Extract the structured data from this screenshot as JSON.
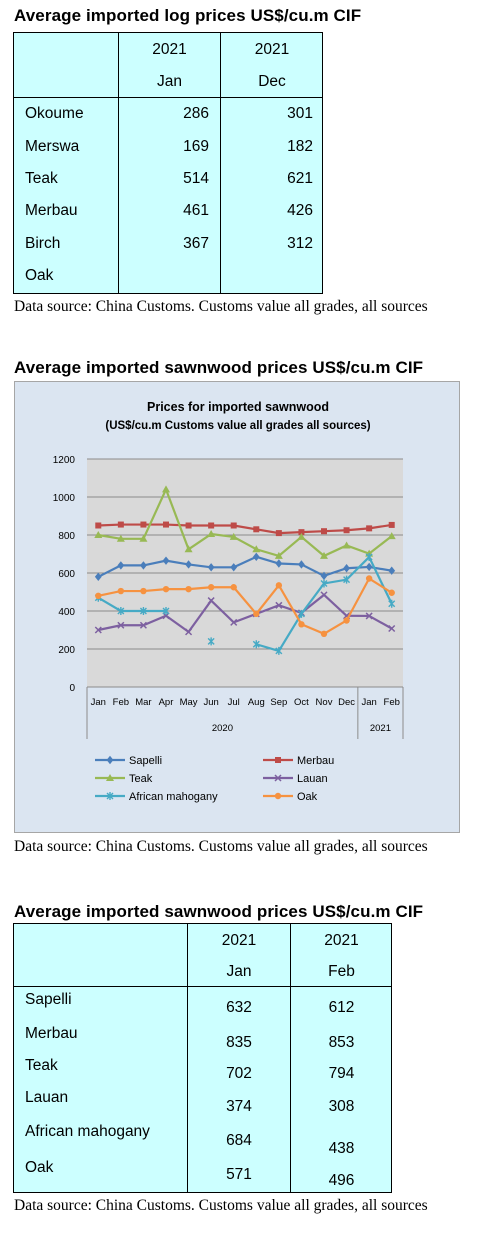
{
  "log_table": {
    "heading": "Average imported log prices US$/cu.m CIF",
    "col1_year": "2021",
    "col1_month": "Jan",
    "col2_year": "2021",
    "col2_month": "Dec",
    "rows": [
      {
        "name": "Okoume",
        "jan": "286",
        "dec": "301"
      },
      {
        "name": "Merswa",
        "jan": "169",
        "dec": "182"
      },
      {
        "name": "Teak",
        "jan": "514",
        "dec": "621"
      },
      {
        "name": "Merbau",
        "jan": "461",
        "dec": "426"
      },
      {
        "name": "Birch",
        "jan": "367",
        "dec": "312"
      },
      {
        "name": "Oak",
        "jan": "",
        "dec": ""
      }
    ],
    "source": "Data source: China Customs. Customs value all grades, all sources"
  },
  "chart_section": {
    "heading": "Average imported sawnwood prices US$/cu.m CIF",
    "source": "Data source: China Customs. Customs value all grades, all sources"
  },
  "chart_data": {
    "type": "line",
    "title": "Prices for imported sawnwood",
    "subtitle": "(US$/cu.m Customs value all grades all sources)",
    "categories": [
      "Jan",
      "Feb",
      "Mar",
      "Apr",
      "May",
      "Jun",
      "Jul",
      "Aug",
      "Sep",
      "Oct",
      "Nov",
      "Dec",
      "Jan",
      "Feb"
    ],
    "year_groups": [
      {
        "label": "2020",
        "start": 0,
        "end": 11
      },
      {
        "label": "2021",
        "start": 12,
        "end": 13
      }
    ],
    "ylim": [
      0,
      1200
    ],
    "yticks": [
      "0",
      "200",
      "400",
      "600",
      "800",
      "1000",
      "1200"
    ],
    "grid": true,
    "legend_position": "bottom",
    "series": [
      {
        "name": "Sapelli",
        "color": "#4a7ebb",
        "marker": "diamond",
        "values": [
          580,
          640,
          640,
          665,
          645,
          630,
          630,
          685,
          650,
          645,
          585,
          625,
          632,
          612
        ]
      },
      {
        "name": "Merbau",
        "color": "#be4b48",
        "marker": "square",
        "values": [
          850,
          855,
          855,
          855,
          850,
          850,
          850,
          830,
          810,
          815,
          820,
          825,
          835,
          853
        ]
      },
      {
        "name": "Teak",
        "color": "#98b954",
        "marker": "triangle",
        "values": [
          800,
          780,
          780,
          1040,
          725,
          805,
          790,
          725,
          690,
          790,
          690,
          745,
          702,
          794
        ]
      },
      {
        "name": "Lauan",
        "color": "#7d60a0",
        "marker": "x",
        "values": [
          300,
          325,
          325,
          375,
          290,
          455,
          340,
          385,
          430,
          390,
          485,
          375,
          374,
          308
        ]
      },
      {
        "name": "African mahogany",
        "color": "#46aac5",
        "marker": "star",
        "values": [
          470,
          400,
          400,
          400,
          null,
          240,
          null,
          225,
          190,
          385,
          545,
          565,
          684,
          438
        ]
      },
      {
        "name": "Oak",
        "color": "#f69240",
        "marker": "circle",
        "values": [
          480,
          505,
          505,
          515,
          515,
          525,
          525,
          385,
          535,
          330,
          280,
          350,
          571,
          496
        ]
      }
    ]
  },
  "sawn_table": {
    "heading": "Average imported sawnwood prices US$/cu.m CIF",
    "col1_year": "2021",
    "col1_month": "Jan",
    "col2_year": "2021",
    "col2_month": "Feb",
    "rows": [
      {
        "name": "Sapelli",
        "jan": "632",
        "feb": "612"
      },
      {
        "name": "Merbau",
        "jan": "835",
        "feb": "853"
      },
      {
        "name": "Teak",
        "jan": "702",
        "feb": "794"
      },
      {
        "name": "Lauan",
        "jan": "374",
        "feb": "308"
      },
      {
        "name": "African mahogany",
        "jan": "684",
        "feb": "438"
      },
      {
        "name": "Oak",
        "jan": "571",
        "feb": "496"
      }
    ],
    "source": "Data source: China Customs. Customs value all grades, all sources"
  }
}
